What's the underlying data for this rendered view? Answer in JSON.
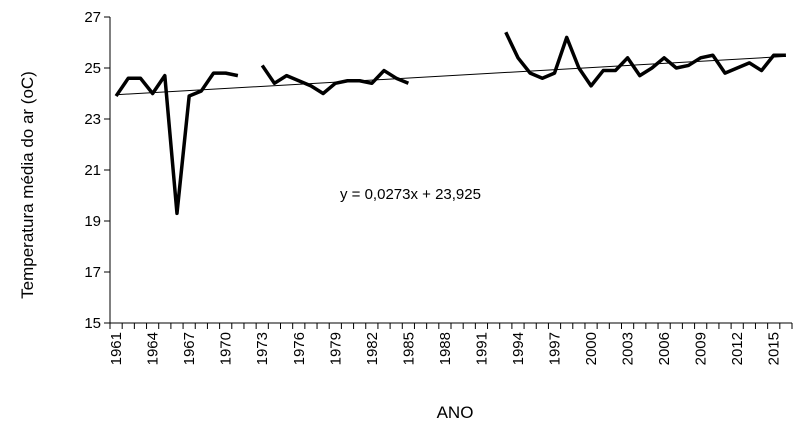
{
  "chart_data": {
    "type": "line",
    "title": "",
    "xlabel": "ANO",
    "ylabel": "Temperatura média do ar (oC)",
    "xlim": [
      1961,
      2016
    ],
    "ylim": [
      15,
      27
    ],
    "yticks": [
      15,
      17,
      19,
      21,
      23,
      25,
      27
    ],
    "xtick_labels": [
      "1961",
      "1964",
      "1967",
      "1970",
      "1973",
      "1976",
      "1979",
      "1982",
      "1985",
      "1988",
      "1991",
      "1994",
      "1997",
      "2000",
      "2003",
      "2006",
      "2009",
      "2012",
      "2015"
    ],
    "grid": false,
    "legend": "none",
    "series": [
      {
        "segments": [
          [
            [
              1961,
              23.9
            ],
            [
              1962,
              24.6
            ],
            [
              1963,
              24.6
            ],
            [
              1964,
              24.0
            ],
            [
              1965,
              24.7
            ],
            [
              1966,
              19.3
            ],
            [
              1967,
              23.9
            ],
            [
              1968,
              24.1
            ],
            [
              1969,
              24.8
            ],
            [
              1970,
              24.8
            ],
            [
              1971,
              24.7
            ]
          ],
          [
            [
              1973,
              25.1
            ],
            [
              1974,
              24.4
            ],
            [
              1975,
              24.7
            ],
            [
              1976,
              24.5
            ],
            [
              1977,
              24.3
            ],
            [
              1978,
              24.0
            ],
            [
              1979,
              24.4
            ],
            [
              1980,
              24.5
            ],
            [
              1981,
              24.5
            ],
            [
              1982,
              24.4
            ],
            [
              1983,
              24.9
            ],
            [
              1984,
              24.6
            ],
            [
              1985,
              24.4
            ]
          ],
          [
            [
              1993,
              26.4
            ],
            [
              1994,
              25.4
            ],
            [
              1995,
              24.8
            ],
            [
              1996,
              24.6
            ],
            [
              1997,
              24.8
            ],
            [
              1998,
              26.2
            ],
            [
              1999,
              25.0
            ],
            [
              2000,
              24.3
            ],
            [
              2001,
              24.9
            ],
            [
              2002,
              24.9
            ],
            [
              2003,
              25.4
            ],
            [
              2004,
              24.7
            ],
            [
              2005,
              25.0
            ],
            [
              2006,
              25.4
            ],
            [
              2007,
              25.0
            ],
            [
              2008,
              25.1
            ],
            [
              2009,
              25.4
            ],
            [
              2010,
              25.5
            ],
            [
              2011,
              24.8
            ],
            [
              2012,
              25.0
            ],
            [
              2013,
              25.2
            ],
            [
              2014,
              24.9
            ],
            [
              2015,
              25.5
            ],
            [
              2016,
              25.5
            ]
          ]
        ]
      }
    ],
    "trendline": {
      "slope": 0.0273,
      "intercept": 23.925,
      "x_start": 1961,
      "x_end": 2016
    },
    "annotation": "y = 0,0273x + 23,925",
    "colors": {
      "series": "#000000",
      "trend": "#000000",
      "axis": "#000000"
    }
  }
}
